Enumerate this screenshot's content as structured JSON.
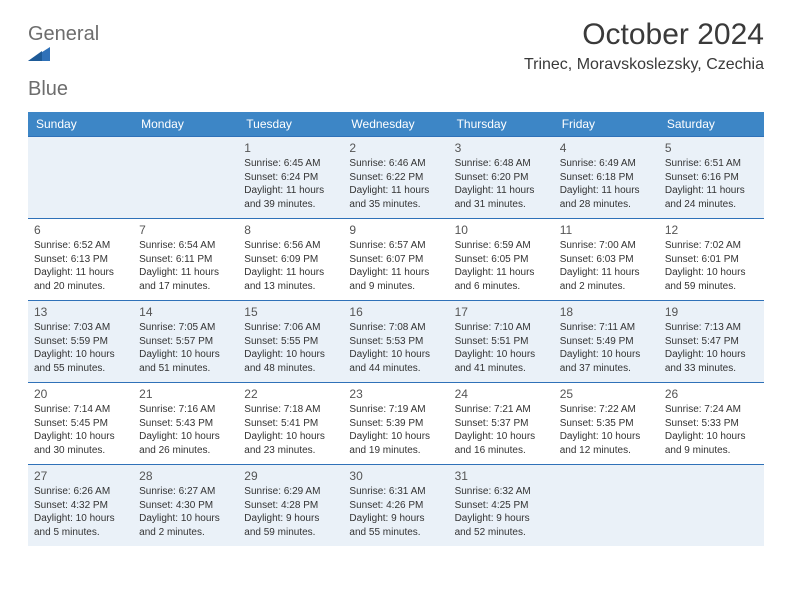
{
  "logo": {
    "word1": "General",
    "word2": "Blue"
  },
  "title": "October 2024",
  "location": "Trinec, Moravskoslezsky, Czechia",
  "colors": {
    "header_bg": "#3d86c6",
    "header_text": "#ffffff",
    "cell_border": "#2f71b8",
    "alt_row_bg": "#eaf1f8",
    "logo_gray": "#6d6d6d",
    "logo_blue": "#2f71b8"
  },
  "weekdays": [
    "Sunday",
    "Monday",
    "Tuesday",
    "Wednesday",
    "Thursday",
    "Friday",
    "Saturday"
  ],
  "weeks": [
    [
      null,
      null,
      {
        "n": "1",
        "sr": "6:45 AM",
        "ss": "6:24 PM",
        "dl": "11 hours and 39 minutes."
      },
      {
        "n": "2",
        "sr": "6:46 AM",
        "ss": "6:22 PM",
        "dl": "11 hours and 35 minutes."
      },
      {
        "n": "3",
        "sr": "6:48 AM",
        "ss": "6:20 PM",
        "dl": "11 hours and 31 minutes."
      },
      {
        "n": "4",
        "sr": "6:49 AM",
        "ss": "6:18 PM",
        "dl": "11 hours and 28 minutes."
      },
      {
        "n": "5",
        "sr": "6:51 AM",
        "ss": "6:16 PM",
        "dl": "11 hours and 24 minutes."
      }
    ],
    [
      {
        "n": "6",
        "sr": "6:52 AM",
        "ss": "6:13 PM",
        "dl": "11 hours and 20 minutes."
      },
      {
        "n": "7",
        "sr": "6:54 AM",
        "ss": "6:11 PM",
        "dl": "11 hours and 17 minutes."
      },
      {
        "n": "8",
        "sr": "6:56 AM",
        "ss": "6:09 PM",
        "dl": "11 hours and 13 minutes."
      },
      {
        "n": "9",
        "sr": "6:57 AM",
        "ss": "6:07 PM",
        "dl": "11 hours and 9 minutes."
      },
      {
        "n": "10",
        "sr": "6:59 AM",
        "ss": "6:05 PM",
        "dl": "11 hours and 6 minutes."
      },
      {
        "n": "11",
        "sr": "7:00 AM",
        "ss": "6:03 PM",
        "dl": "11 hours and 2 minutes."
      },
      {
        "n": "12",
        "sr": "7:02 AM",
        "ss": "6:01 PM",
        "dl": "10 hours and 59 minutes."
      }
    ],
    [
      {
        "n": "13",
        "sr": "7:03 AM",
        "ss": "5:59 PM",
        "dl": "10 hours and 55 minutes."
      },
      {
        "n": "14",
        "sr": "7:05 AM",
        "ss": "5:57 PM",
        "dl": "10 hours and 51 minutes."
      },
      {
        "n": "15",
        "sr": "7:06 AM",
        "ss": "5:55 PM",
        "dl": "10 hours and 48 minutes."
      },
      {
        "n": "16",
        "sr": "7:08 AM",
        "ss": "5:53 PM",
        "dl": "10 hours and 44 minutes."
      },
      {
        "n": "17",
        "sr": "7:10 AM",
        "ss": "5:51 PM",
        "dl": "10 hours and 41 minutes."
      },
      {
        "n": "18",
        "sr": "7:11 AM",
        "ss": "5:49 PM",
        "dl": "10 hours and 37 minutes."
      },
      {
        "n": "19",
        "sr": "7:13 AM",
        "ss": "5:47 PM",
        "dl": "10 hours and 33 minutes."
      }
    ],
    [
      {
        "n": "20",
        "sr": "7:14 AM",
        "ss": "5:45 PM",
        "dl": "10 hours and 30 minutes."
      },
      {
        "n": "21",
        "sr": "7:16 AM",
        "ss": "5:43 PM",
        "dl": "10 hours and 26 minutes."
      },
      {
        "n": "22",
        "sr": "7:18 AM",
        "ss": "5:41 PM",
        "dl": "10 hours and 23 minutes."
      },
      {
        "n": "23",
        "sr": "7:19 AM",
        "ss": "5:39 PM",
        "dl": "10 hours and 19 minutes."
      },
      {
        "n": "24",
        "sr": "7:21 AM",
        "ss": "5:37 PM",
        "dl": "10 hours and 16 minutes."
      },
      {
        "n": "25",
        "sr": "7:22 AM",
        "ss": "5:35 PM",
        "dl": "10 hours and 12 minutes."
      },
      {
        "n": "26",
        "sr": "7:24 AM",
        "ss": "5:33 PM",
        "dl": "10 hours and 9 minutes."
      }
    ],
    [
      {
        "n": "27",
        "sr": "6:26 AM",
        "ss": "4:32 PM",
        "dl": "10 hours and 5 minutes."
      },
      {
        "n": "28",
        "sr": "6:27 AM",
        "ss": "4:30 PM",
        "dl": "10 hours and 2 minutes."
      },
      {
        "n": "29",
        "sr": "6:29 AM",
        "ss": "4:28 PM",
        "dl": "9 hours and 59 minutes."
      },
      {
        "n": "30",
        "sr": "6:31 AM",
        "ss": "4:26 PM",
        "dl": "9 hours and 55 minutes."
      },
      {
        "n": "31",
        "sr": "6:32 AM",
        "ss": "4:25 PM",
        "dl": "9 hours and 52 minutes."
      },
      null,
      null
    ]
  ],
  "labels": {
    "sunrise": "Sunrise:",
    "sunset": "Sunset:",
    "daylight": "Daylight:"
  },
  "alt_rows": [
    0,
    2,
    4
  ]
}
